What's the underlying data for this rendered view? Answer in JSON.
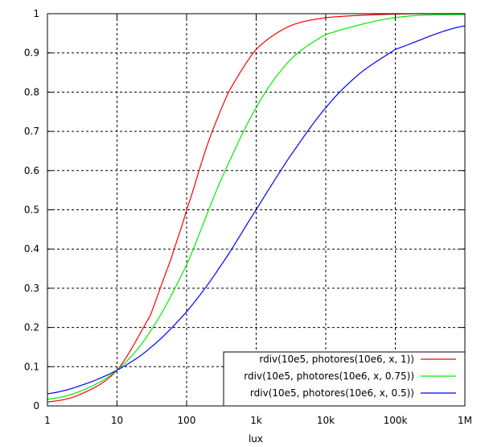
{
  "chart_data": {
    "type": "line",
    "title": "",
    "xlabel": "lux",
    "ylabel": "",
    "xscale": "log",
    "xlim": [
      1,
      1000000
    ],
    "ylim": [
      0,
      1
    ],
    "grid": true,
    "legend_position": "bottom-right",
    "x_ticks": [
      {
        "value": 1,
        "label": "1"
      },
      {
        "value": 10,
        "label": "10"
      },
      {
        "value": 100,
        "label": "100"
      },
      {
        "value": 1000,
        "label": "1k"
      },
      {
        "value": 10000,
        "label": "10k"
      },
      {
        "value": 100000,
        "label": "100k"
      },
      {
        "value": 1000000,
        "label": "1M"
      }
    ],
    "y_ticks": [
      {
        "value": 0,
        "label": "0"
      },
      {
        "value": 0.1,
        "label": "0.1"
      },
      {
        "value": 0.2,
        "label": "0.2"
      },
      {
        "value": 0.3,
        "label": "0.3"
      },
      {
        "value": 0.4,
        "label": "0.4"
      },
      {
        "value": 0.5,
        "label": "0.5"
      },
      {
        "value": 0.6,
        "label": "0.6"
      },
      {
        "value": 0.7,
        "label": "0.7"
      },
      {
        "value": 0.8,
        "label": "0.8"
      },
      {
        "value": 0.9,
        "label": "0.9"
      },
      {
        "value": 1,
        "label": "1"
      }
    ],
    "series": [
      {
        "name": "rdiv(10e5, photores(10e6, x, 1))",
        "color": "#ff0000",
        "x": [
          1,
          3,
          10,
          30,
          60,
          100,
          200,
          400,
          1000,
          3000,
          10000,
          100000,
          1000000
        ],
        "y": [
          0.01,
          0.03,
          0.091,
          0.23,
          0.375,
          0.5,
          0.667,
          0.8,
          0.909,
          0.968,
          0.99,
          0.999,
          1.0
        ]
      },
      {
        "name": "rdiv(10e5, photores(10e6, x, 0.75))",
        "color": "#00ee00",
        "x": [
          1,
          3,
          10,
          30,
          100,
          300,
          1000,
          3000,
          10000,
          100000,
          1000000
        ],
        "y": [
          0.017,
          0.038,
          0.091,
          0.19,
          0.36,
          0.57,
          0.76,
          0.88,
          0.947,
          0.99,
          0.998
        ]
      },
      {
        "name": "rdiv(10e5, photores(10e6, x, 0.5))",
        "color": "#0000ff",
        "x": [
          1,
          3,
          10,
          30,
          100,
          300,
          1000,
          3000,
          10000,
          30000,
          100000,
          1000000
        ],
        "y": [
          0.031,
          0.052,
          0.091,
          0.148,
          0.24,
          0.354,
          0.5,
          0.634,
          0.76,
          0.846,
          0.909,
          0.969
        ]
      }
    ]
  }
}
